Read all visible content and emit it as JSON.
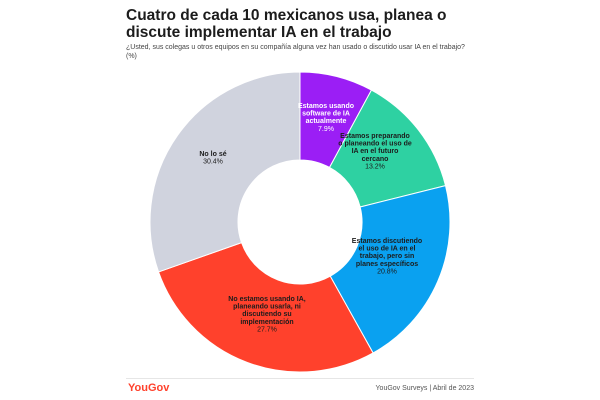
{
  "header": {
    "title": "Cuatro de cada 10 mexicanos usa, planea o discute implementar IA en el trabajo",
    "subtitle": "¿Usted, sus colegas u otros equipos en su compañía alguna vez han usado o discutido usar IA en el trabajo? (%)"
  },
  "chart_data": {
    "type": "pie",
    "title": "Cuatro de cada 10 mexicanos usa, planea o discute implementar IA en el trabajo",
    "subtitle": "¿Usted, sus colegas u otros equipos en su compañía alguna vez han usado o discutido usar IA en el trabajo? (%)",
    "donut": true,
    "slices": [
      {
        "label": "Estamos usando software de IA actualmente",
        "value": 7.9,
        "value_label": "7.9%",
        "color": "#9b1ef5",
        "text_color": "#ffffff"
      },
      {
        "label": "Estamos preparando o planeando el uso de IA en el futuro cercano",
        "value": 13.2,
        "value_label": "13.2%",
        "color": "#2ed1a2",
        "text_color": "#1c1c1c"
      },
      {
        "label": "Estamos discutiendo el uso de IA en el trabajo, pero sin planes específicos",
        "value": 20.8,
        "value_label": "20.8%",
        "color": "#0aa1f0",
        "text_color": "#1c1c1c"
      },
      {
        "label": "No estamos usando IA, planeando usarla, ni discutiendo su implementación",
        "value": 27.7,
        "value_label": "27.7%",
        "color": "#ff412c",
        "text_color": "#1c1c1c"
      },
      {
        "label": "No lo sé",
        "value": 30.4,
        "value_label": "30.4%",
        "color": "#d0d3de",
        "text_color": "#1c1c1c"
      }
    ]
  },
  "footer": {
    "logo": "YouGov",
    "source": "YouGov Surveys | Abril de 2023"
  }
}
